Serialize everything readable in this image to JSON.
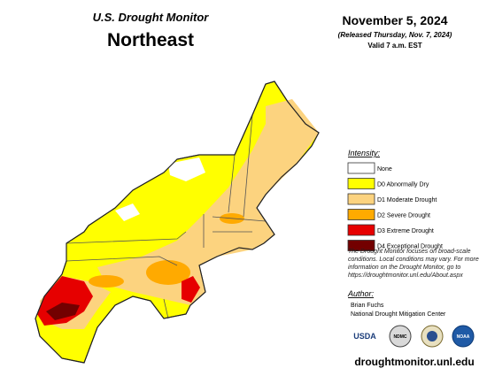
{
  "header": {
    "product": "U.S. Drought Monitor",
    "region": "Northeast",
    "date": "November 5, 2024",
    "released": "(Released Thursday, Nov. 7, 2024)",
    "valid": "Valid 7 a.m. EST"
  },
  "legend": {
    "title": "Intensity:",
    "items": [
      {
        "label": "None",
        "color": "#ffffff"
      },
      {
        "label": "D0 Abnormally Dry",
        "color": "#ffff00"
      },
      {
        "label": "D1 Moderate Drought",
        "color": "#fcd37f"
      },
      {
        "label": "D2 Severe Drought",
        "color": "#ffaa00"
      },
      {
        "label": "D3 Extreme Drought",
        "color": "#e60000"
      },
      {
        "label": "D4 Exceptional Drought",
        "color": "#730000"
      }
    ]
  },
  "note": "The Drought Monitor focuses on broad-scale conditions. Local conditions may vary. For more information on the Drought Monitor, go to https://droughtmonitor.unl.edu/About.aspx",
  "author": {
    "title": "Author:",
    "name": "Brian Fuchs",
    "org": "National Drought Mitigation Center"
  },
  "logos": [
    "USDA",
    "NDMC",
    "NOAA"
  ],
  "footer": {
    "url": "droughtmonitor.unl.edu"
  }
}
